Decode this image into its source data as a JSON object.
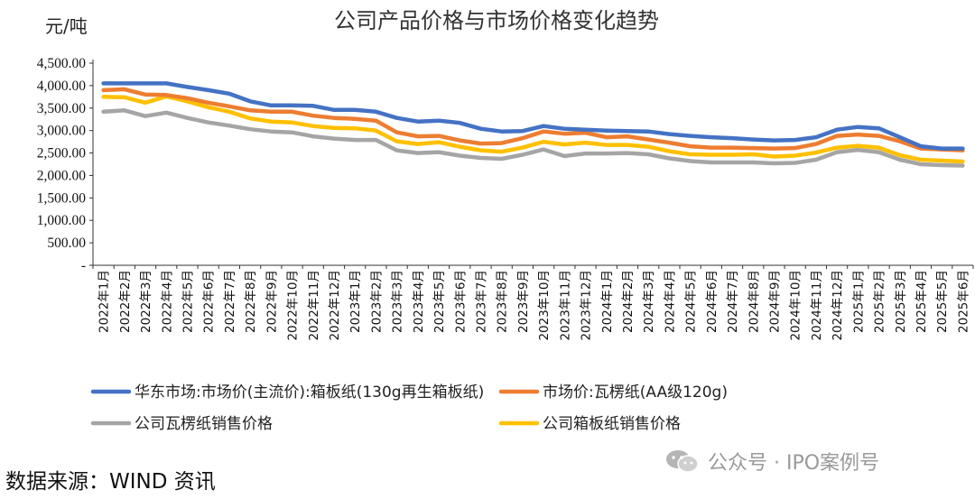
{
  "chart_data": {
    "type": "line",
    "title": "公司产品价格与市场价格变化趋势",
    "ylabel": "元/吨",
    "ylim": [
      0,
      4500
    ],
    "yticks": [
      0,
      500,
      1000,
      1500,
      2000,
      2500,
      3000,
      3500,
      4000,
      4500
    ],
    "ytick_labels": [
      "-",
      "500.00",
      "1,000.00",
      "1,500.00",
      "2,000.00",
      "2,500.00",
      "3,000.00",
      "3,500.00",
      "4,000.00",
      "4,500.00"
    ],
    "grid": false,
    "legend_position": "bottom",
    "categories": [
      "2022年1月",
      "2022年2月",
      "2022年3月",
      "2022年4月",
      "2022年5月",
      "2022年6月",
      "2022年7月",
      "2022年8月",
      "2022年9月",
      "2022年10月",
      "2022年11月",
      "2022年12月",
      "2023年1月",
      "2023年2月",
      "2023年3月",
      "2023年4月",
      "2023年5月",
      "2023年6月",
      "2023年7月",
      "2023年8月",
      "2023年9月",
      "2023年10月",
      "2023年11月",
      "2023年12月",
      "2024年1月",
      "2024年2月",
      "2024年3月",
      "2024年4月",
      "2024年5月",
      "2024年6月",
      "2024年7月",
      "2024年8月",
      "2024年9月",
      "2024年10月",
      "2024年11月",
      "2024年12月",
      "2025年1月",
      "2025年2月",
      "2025年3月",
      "2025年4月",
      "2025年5月",
      "2025年6月"
    ],
    "series": [
      {
        "name": "华东市场:市场价(主流价):箱板纸(130g再生箱板纸)",
        "color": "#4472C4",
        "values": [
          4050,
          4050,
          4050,
          4050,
          3970,
          3900,
          3820,
          3650,
          3560,
          3560,
          3550,
          3460,
          3460,
          3420,
          3280,
          3200,
          3220,
          3170,
          3040,
          2980,
          2990,
          3100,
          3040,
          3020,
          3000,
          2990,
          2980,
          2920,
          2880,
          2850,
          2830,
          2800,
          2780,
          2790,
          2850,
          3020,
          3080,
          3050,
          2850,
          2650,
          2600,
          2600
        ]
      },
      {
        "name": "市场价:瓦楞纸(AA级120g)",
        "color": "#ED7D31",
        "values": [
          3900,
          3920,
          3800,
          3790,
          3720,
          3620,
          3540,
          3450,
          3420,
          3420,
          3330,
          3280,
          3260,
          3220,
          2960,
          2870,
          2880,
          2780,
          2710,
          2720,
          2830,
          2980,
          2930,
          2950,
          2850,
          2870,
          2800,
          2730,
          2650,
          2620,
          2620,
          2610,
          2600,
          2610,
          2700,
          2880,
          2910,
          2880,
          2760,
          2600,
          2580,
          2560
        ]
      },
      {
        "name": "公司瓦楞纸销售价格",
        "color": "#A5A5A5",
        "values": [
          3420,
          3450,
          3320,
          3400,
          3280,
          3180,
          3110,
          3030,
          2980,
          2960,
          2870,
          2820,
          2790,
          2790,
          2560,
          2500,
          2520,
          2440,
          2390,
          2370,
          2460,
          2580,
          2430,
          2490,
          2490,
          2500,
          2470,
          2380,
          2320,
          2290,
          2290,
          2290,
          2270,
          2280,
          2350,
          2520,
          2570,
          2520,
          2350,
          2250,
          2230,
          2220
        ]
      },
      {
        "name": "公司箱板纸销售价格",
        "color": "#FFC000",
        "values": [
          3750,
          3740,
          3620,
          3760,
          3650,
          3520,
          3420,
          3270,
          3200,
          3180,
          3100,
          3060,
          3050,
          3000,
          2760,
          2700,
          2740,
          2640,
          2560,
          2530,
          2620,
          2750,
          2690,
          2730,
          2680,
          2680,
          2640,
          2540,
          2470,
          2460,
          2460,
          2470,
          2420,
          2440,
          2510,
          2620,
          2660,
          2620,
          2450,
          2350,
          2330,
          2310
        ]
      }
    ]
  },
  "source_text": "数据来源：WIND 资讯",
  "watermark": "公众号 · IPO案例号"
}
